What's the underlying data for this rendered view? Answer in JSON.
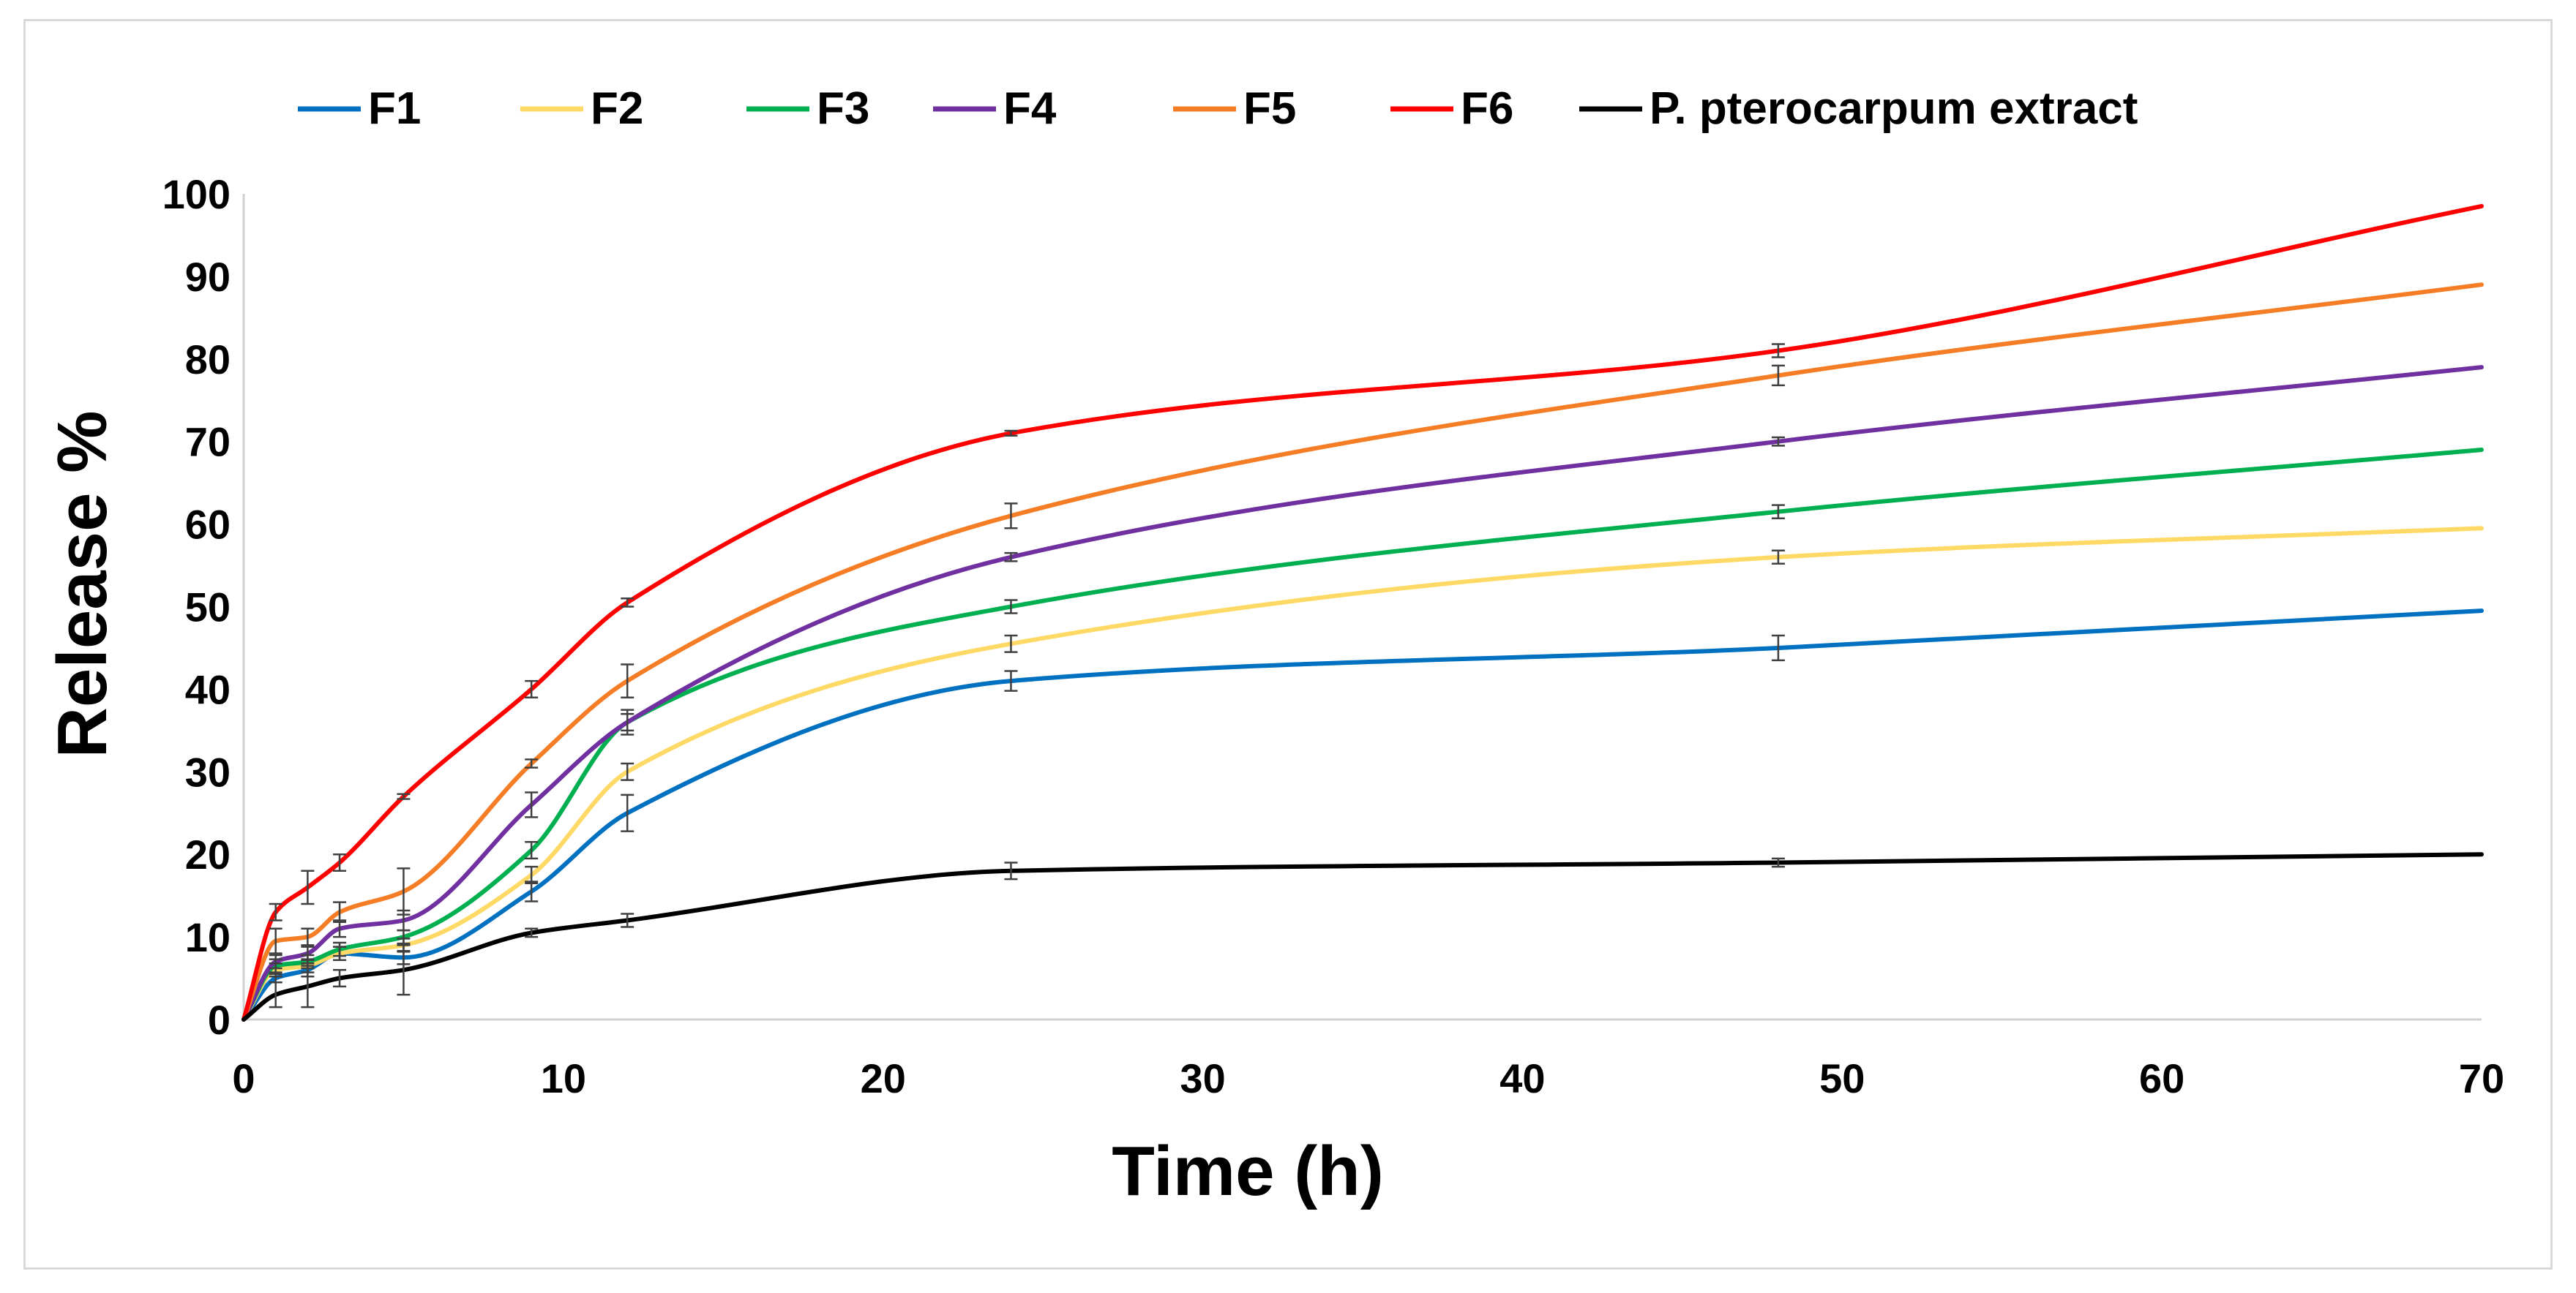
{
  "chart_data": {
    "type": "line",
    "title": "",
    "xlabel": "Time (h)",
    "ylabel": "Release %",
    "xlim": [
      0,
      70
    ],
    "ylim": [
      0,
      100
    ],
    "xticks": [
      0,
      10,
      20,
      30,
      40,
      50,
      60,
      70
    ],
    "yticks": [
      0,
      10,
      20,
      30,
      40,
      50,
      60,
      70,
      80,
      90,
      100
    ],
    "grid": false,
    "legend_position": "top",
    "x": [
      0,
      1,
      2,
      3,
      5,
      9,
      12,
      24,
      48,
      70
    ],
    "series": [
      {
        "name": "F1",
        "color": "#0070C0",
        "values": [
          0,
          5,
          6,
          8,
          7.5,
          15.5,
          25,
          41,
          45,
          49.5
        ],
        "errors": [
          0,
          0.5,
          0.8,
          0.8,
          0.8,
          1.2,
          2.2,
          1.2,
          1.5,
          0
        ]
      },
      {
        "name": "F2",
        "color": "#FFD966",
        "values": [
          0,
          6,
          6.5,
          8,
          9,
          17.5,
          30,
          45.5,
          56,
          59.5
        ],
        "errors": [
          0,
          0.8,
          0.8,
          0.8,
          0.8,
          1.0,
          1.0,
          1.0,
          0.8,
          0
        ]
      },
      {
        "name": "F3",
        "color": "#00B050",
        "values": [
          0,
          6.5,
          7,
          8.5,
          10,
          20.5,
          36,
          50,
          61.5,
          69
        ],
        "errors": [
          0,
          0.8,
          0.8,
          0.8,
          0.8,
          1.0,
          1.0,
          0.8,
          0.8,
          0
        ]
      },
      {
        "name": "F4",
        "color": "#7030A0",
        "values": [
          0,
          7,
          8,
          11,
          12,
          26,
          36,
          56,
          70,
          79
        ],
        "errors": [
          0,
          0.8,
          0.8,
          1.0,
          1.2,
          1.5,
          1.5,
          0.5,
          0.5,
          0
        ]
      },
      {
        "name": "F5",
        "color": "#F57D25",
        "values": [
          0,
          9.5,
          10,
          13,
          15.5,
          31,
          41,
          61,
          78,
          89
        ],
        "errors": [
          0,
          1.5,
          1.0,
          1.2,
          2.8,
          0.5,
          2.0,
          1.5,
          1.2,
          0
        ]
      },
      {
        "name": "F6",
        "color": "#FF0000",
        "values": [
          0,
          13,
          16,
          19,
          27,
          40,
          50.5,
          71,
          81,
          98.5
        ],
        "errors": [
          0,
          1.0,
          2.0,
          1.0,
          0.3,
          1.0,
          0.5,
          0.3,
          0.8,
          0
        ]
      },
      {
        "name": "P. pterocarpum extract",
        "color": "#000000",
        "values": [
          0,
          3,
          4,
          5,
          6,
          10.5,
          12,
          18,
          19,
          20
        ],
        "errors": [
          0,
          1.5,
          2.5,
          1.0,
          3.0,
          0.5,
          0.8,
          1.0,
          0.5,
          0
        ]
      }
    ]
  }
}
